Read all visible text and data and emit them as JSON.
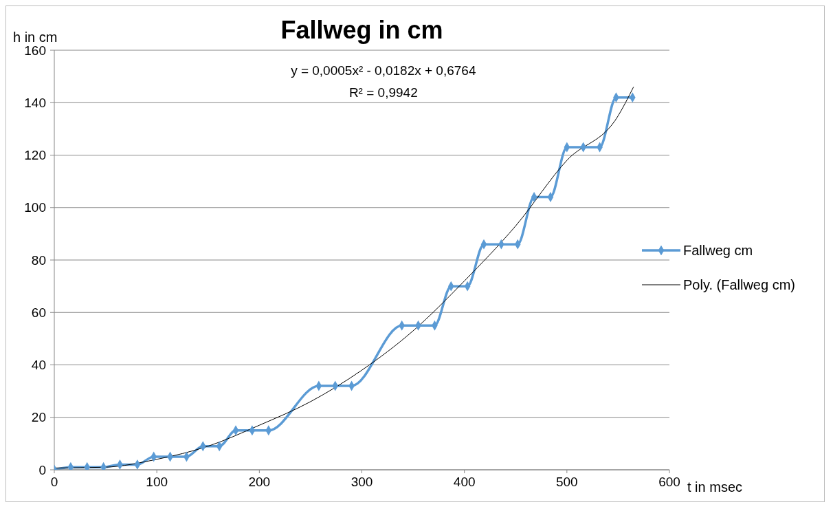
{
  "chart_data": {
    "type": "line",
    "title": "Fallweg in cm",
    "xlabel": "t in msec",
    "ylabel": "h in cm",
    "annotations": [
      "y = 0,0005x² - 0,0182x + 0,6764",
      "R² = 0,9942"
    ],
    "xlim": [
      0,
      600
    ],
    "xticks": [
      0,
      100,
      200,
      300,
      400,
      500,
      600
    ],
    "ylim": [
      0,
      160
    ],
    "yticks": [
      0,
      20,
      40,
      60,
      80,
      100,
      120,
      140,
      160
    ],
    "grid": "y",
    "legend": "right",
    "line_style": "solid",
    "series": [
      {
        "name": "Fallweg cm",
        "color": "#5b9bd5",
        "marker": "diamond",
        "x": [
          0,
          16,
          32,
          48,
          64,
          81,
          97,
          113,
          129,
          145,
          161,
          177,
          193,
          209,
          258,
          274,
          290,
          339,
          355,
          371,
          387,
          403,
          419,
          436,
          452,
          468,
          484,
          500,
          516,
          532,
          548,
          564
        ],
        "values": [
          0,
          1,
          1,
          1,
          2,
          2,
          5,
          5,
          5,
          9,
          9,
          15,
          15,
          15,
          32,
          32,
          32,
          55,
          55,
          55,
          70,
          70,
          86,
          86,
          86,
          104,
          104,
          123,
          123,
          123,
          142,
          142
        ]
      },
      {
        "name": "Poly. (Fallweg cm)",
        "type": "line",
        "color": "#000000",
        "marker": "none",
        "x": [
          0,
          50,
          100,
          150,
          200,
          250,
          300,
          350,
          400,
          450,
          500,
          550,
          565
        ],
        "values": [
          0.7,
          1,
          4,
          9,
          17,
          26,
          38,
          53,
          72,
          93,
          118,
          135,
          146
        ]
      }
    ]
  }
}
